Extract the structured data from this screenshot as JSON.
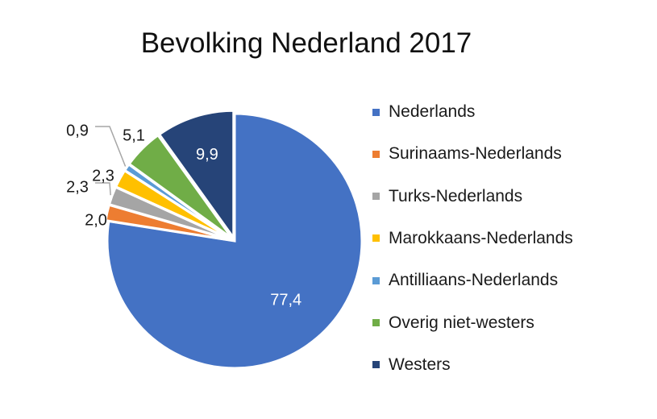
{
  "chart_data": {
    "type": "pie",
    "title": "Bevolking Nederland 2017",
    "slices": [
      {
        "label": "Nederlands",
        "value": 77.4,
        "display": "77,4",
        "color": "#4472C4"
      },
      {
        "label": "Surinaams-Nederlands",
        "value": 2.0,
        "display": "2,0",
        "color": "#ED7D31"
      },
      {
        "label": "Turks-Nederlands",
        "value": 2.3,
        "display": "2,3",
        "color": "#A5A5A5"
      },
      {
        "label": "Marokkaans-Nederlands",
        "value": 2.3,
        "display": "2,3",
        "color": "#FFC000"
      },
      {
        "label": "Antilliaans-Nederlands",
        "value": 0.9,
        "display": "0,9",
        "color": "#5B9BD5"
      },
      {
        "label": "Overig niet-westers",
        "value": 5.1,
        "display": "5,1",
        "color": "#70AD47"
      },
      {
        "label": "Westers",
        "value": 9.9,
        "display": "9,9",
        "color": "#264478"
      }
    ],
    "legend_position": "right"
  }
}
